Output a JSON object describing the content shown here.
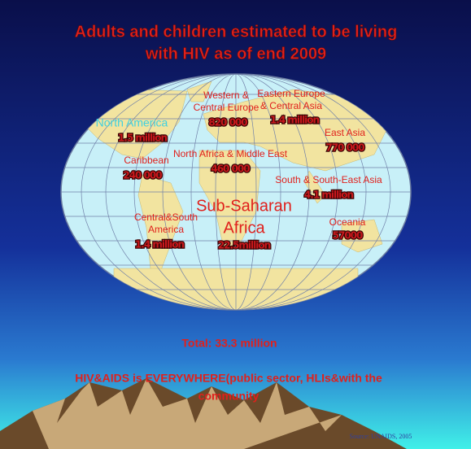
{
  "title": [
    "Adults and children estimated to be living",
    "with HIV as of end 2009"
  ],
  "regions": [
    {
      "name": [
        "North America"
      ],
      "value": "1.5 million"
    },
    {
      "name": [
        "Caribbean"
      ],
      "value": "240 000"
    },
    {
      "name": [
        "Western &",
        "Central Europe"
      ],
      "value": "820 000"
    },
    {
      "name": [
        "Eastern Europe",
        "& Central Asia"
      ],
      "value": "1.4 million"
    },
    {
      "name": [
        "East Asia"
      ],
      "value": "770 000"
    },
    {
      "name": [
        "North Africa & Middle East"
      ],
      "value": "460 000"
    },
    {
      "name": [
        "South & South-East Asia"
      ],
      "value": "4.1 million"
    },
    {
      "name": [
        "Sub-Saharan",
        "Africa"
      ],
      "value": "22.5million"
    },
    {
      "name": [
        "Central&South",
        "America"
      ],
      "value": "1.4 million"
    },
    {
      "name": [
        "Oceania"
      ],
      "value": "57000"
    }
  ],
  "total": "Total: 33.3 million",
  "message": [
    "HIV&AIDS is EVERYWHERE(public sector, HLIs&with the",
    "community"
  ],
  "source": "Source: UNAIDS, 2005"
}
